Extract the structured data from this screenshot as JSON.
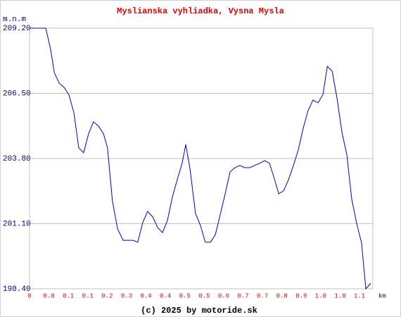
{
  "chart_data": {
    "type": "line",
    "title": "Myslianska vyhliadka, Vysna Mysla",
    "footer": "(c) 2025 by motoride.sk",
    "y_label": "m.n.m",
    "x_label": "km",
    "xlim": [
      0,
      1.123
    ],
    "ylim": [
      198.4,
      209.2
    ],
    "grid": true,
    "yticks": [
      {
        "value": 198.4,
        "label": "198.40"
      },
      {
        "value": 201.1,
        "label": "201.10"
      },
      {
        "value": 203.8,
        "label": "203.80"
      },
      {
        "value": 206.5,
        "label": "206.50"
      },
      {
        "value": 209.2,
        "label": "209.20"
      }
    ],
    "xticks": [
      {
        "value": 0,
        "label": "0"
      },
      {
        "value": 0.0635,
        "label": "0.0"
      },
      {
        "value": 0.127,
        "label": "0.1"
      },
      {
        "value": 0.1905,
        "label": "0.1"
      },
      {
        "value": 0.254,
        "label": "0.2"
      },
      {
        "value": 0.3175,
        "label": "0.3"
      },
      {
        "value": 0.381,
        "label": "0.4"
      },
      {
        "value": 0.4445,
        "label": "0.4"
      },
      {
        "value": 0.508,
        "label": "0.5"
      },
      {
        "value": 0.5715,
        "label": "0.5"
      },
      {
        "value": 0.635,
        "label": "0.6"
      },
      {
        "value": 0.6985,
        "label": "0.7"
      },
      {
        "value": 0.762,
        "label": "0.7"
      },
      {
        "value": 0.8255,
        "label": "0.8"
      },
      {
        "value": 0.889,
        "label": "0.9"
      },
      {
        "value": 0.9525,
        "label": "1.0"
      },
      {
        "value": 1.016,
        "label": "1.0"
      },
      {
        "value": 1.0795,
        "label": "1.1"
      }
    ],
    "series": [
      {
        "color": "#0000cc",
        "x": [
          0.0,
          0.053,
          0.069,
          0.081,
          0.097,
          0.113,
          0.129,
          0.145,
          0.161,
          0.177,
          0.193,
          0.209,
          0.226,
          0.242,
          0.255,
          0.271,
          0.288,
          0.306,
          0.322,
          0.338,
          0.354,
          0.37,
          0.386,
          0.403,
          0.419,
          0.435,
          0.451,
          0.467,
          0.483,
          0.499,
          0.511,
          0.525,
          0.543,
          0.559,
          0.575,
          0.592,
          0.608,
          0.624,
          0.64,
          0.656,
          0.672,
          0.688,
          0.704,
          0.72,
          0.736,
          0.753,
          0.769,
          0.785,
          0.801,
          0.815,
          0.831,
          0.847,
          0.863,
          0.879,
          0.895,
          0.911,
          0.927,
          0.944,
          0.96,
          0.974,
          0.99,
          1.006,
          1.022,
          1.038,
          1.054,
          1.07,
          1.086,
          1.1,
          1.116
        ],
        "values": [
          209.2,
          209.2,
          208.32,
          207.36,
          206.92,
          206.75,
          206.43,
          205.7,
          204.24,
          204.04,
          204.82,
          205.32,
          205.14,
          204.82,
          204.24,
          202.05,
          200.88,
          200.41,
          200.41,
          200.41,
          200.33,
          201.14,
          201.61,
          201.38,
          200.94,
          200.73,
          201.23,
          202.19,
          202.92,
          203.6,
          204.38,
          203.36,
          201.52,
          201.03,
          200.33,
          200.33,
          200.65,
          201.49,
          202.34,
          203.25,
          203.42,
          203.51,
          203.42,
          203.42,
          203.51,
          203.6,
          203.71,
          203.6,
          202.95,
          202.34,
          202.46,
          202.92,
          203.51,
          204.15,
          205.05,
          205.78,
          206.22,
          206.11,
          206.46,
          207.62,
          207.42,
          206.28,
          204.88,
          203.95,
          202.11,
          201.11,
          200.3,
          198.4,
          198.63
        ]
      }
    ]
  }
}
